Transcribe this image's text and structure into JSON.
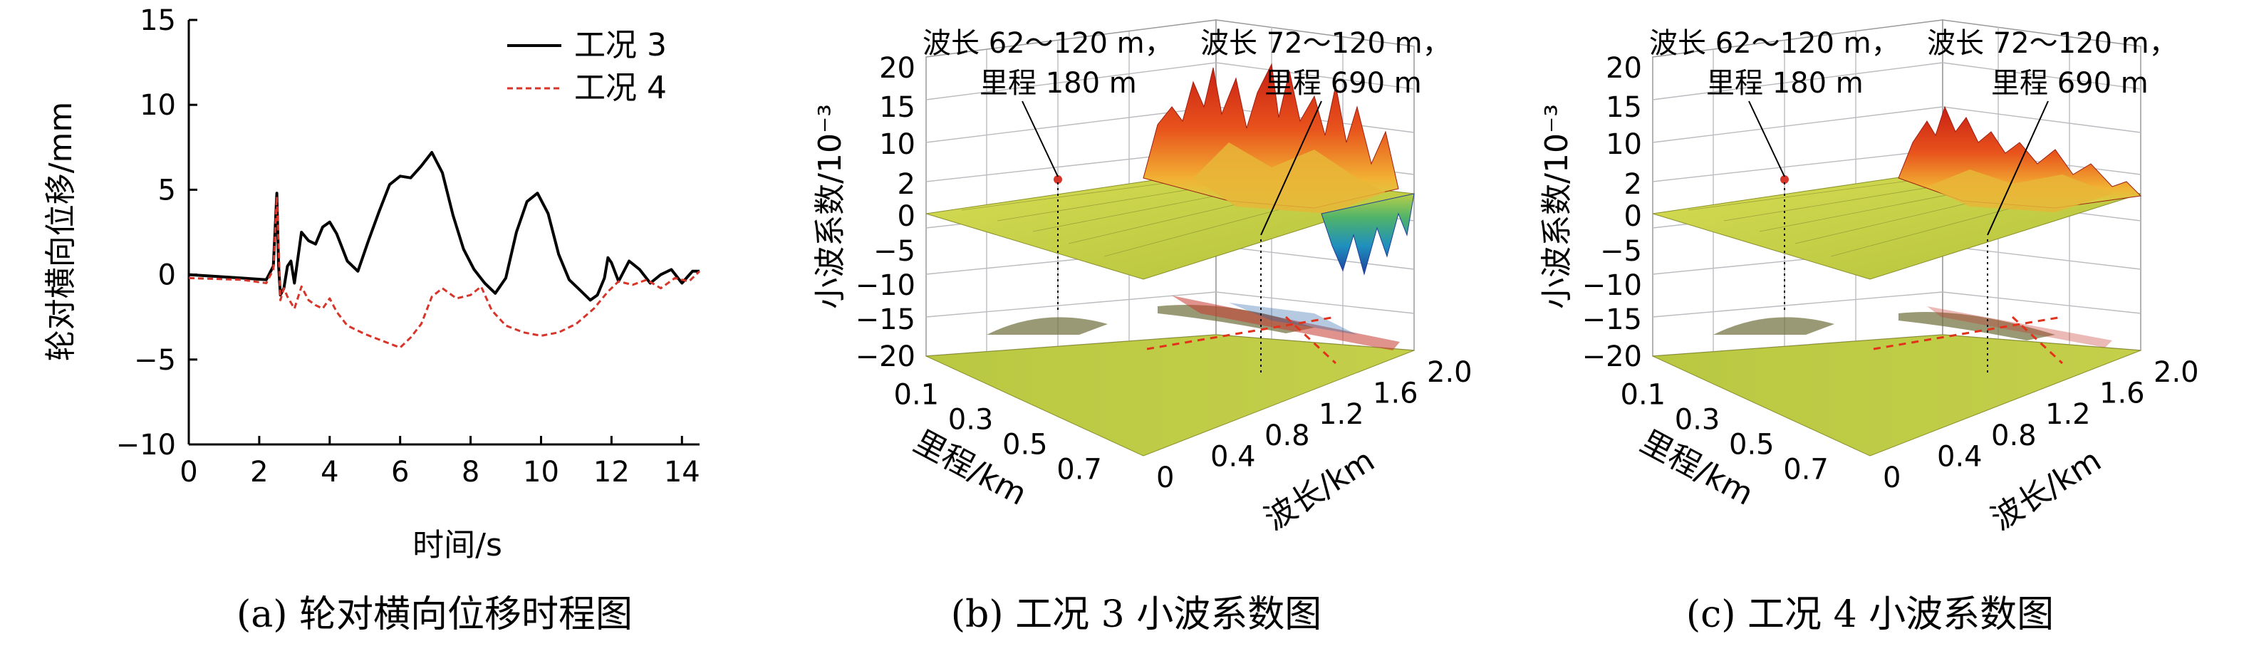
{
  "captions": [
    "(a) 轮对横向位移时程图",
    "(b) 工况 3 小波系数图",
    "(c) 工况 4 小波系数图"
  ],
  "chart_data": [
    {
      "type": "line",
      "xlabel": "时间/s",
      "ylabel": "轮对横向位移/mm",
      "xlim": [
        0,
        14.5
      ],
      "ylim": [
        -10,
        15
      ],
      "xticks": [
        0,
        2,
        4,
        6,
        8,
        10,
        12,
        14
      ],
      "yticks": [
        -10,
        -5,
        0,
        5,
        10,
        15
      ],
      "grid": false,
      "legend_position": "top-right",
      "series": [
        {
          "name": "工况 3",
          "color": "#000000",
          "style": "solid",
          "x": [
            0,
            1.5,
            2.2,
            2.4,
            2.5,
            2.55,
            2.6,
            2.7,
            2.8,
            2.9,
            3.0,
            3.2,
            3.4,
            3.6,
            3.8,
            4.0,
            4.2,
            4.5,
            4.8,
            5.1,
            5.4,
            5.7,
            6.0,
            6.3,
            6.6,
            6.9,
            7.2,
            7.5,
            7.8,
            8.1,
            8.4,
            8.7,
            9.0,
            9.3,
            9.6,
            9.9,
            10.2,
            10.5,
            10.8,
            11.1,
            11.4,
            11.6,
            11.8,
            11.9,
            12.0,
            12.2,
            12.5,
            12.8,
            13.1,
            13.4,
            13.7,
            14.0,
            14.3,
            14.5
          ],
          "y": [
            0,
            -0.2,
            -0.3,
            0.5,
            4.8,
            0.5,
            -1.2,
            -0.8,
            0.5,
            0.8,
            -0.5,
            2.5,
            2.0,
            1.8,
            2.8,
            3.1,
            2.4,
            0.8,
            0.2,
            2.0,
            3.7,
            5.3,
            5.8,
            5.7,
            6.4,
            7.2,
            6.0,
            3.5,
            1.5,
            0.3,
            -0.5,
            -1.1,
            -0.2,
            2.5,
            4.3,
            4.8,
            3.6,
            1.2,
            -0.3,
            -0.9,
            -1.5,
            -1.2,
            -0.2,
            1.0,
            0.7,
            -0.4,
            0.8,
            0.3,
            -0.5,
            0.0,
            0.3,
            -0.5,
            0.2,
            0.2
          ]
        },
        {
          "name": "工况 4",
          "color": "#d8352a",
          "style": "dashed",
          "x": [
            0,
            1.5,
            2.2,
            2.4,
            2.5,
            2.6,
            2.7,
            2.8,
            3.0,
            3.2,
            3.4,
            3.6,
            3.8,
            4.0,
            4.2,
            4.5,
            5.0,
            5.5,
            6.0,
            6.3,
            6.6,
            6.9,
            7.2,
            7.6,
            8.0,
            8.3,
            8.6,
            9.0,
            9.5,
            10.0,
            10.5,
            11.0,
            11.5,
            11.9,
            12.2,
            12.6,
            13.0,
            13.4,
            13.8,
            14.2,
            14.5
          ],
          "y": [
            -0.2,
            -0.3,
            -0.5,
            0.3,
            4.6,
            -1.5,
            -0.8,
            -1.3,
            -2.0,
            -0.7,
            -1.5,
            -1.8,
            -2.0,
            -1.4,
            -2.2,
            -3.0,
            -3.5,
            -3.9,
            -4.3,
            -3.7,
            -2.9,
            -1.3,
            -0.8,
            -1.4,
            -1.2,
            -0.7,
            -2.1,
            -3.0,
            -3.4,
            -3.6,
            -3.4,
            -2.9,
            -2.0,
            -1.0,
            -0.4,
            -0.6,
            -0.3,
            -0.8,
            -0.2,
            -0.4,
            0.2
          ]
        }
      ]
    },
    {
      "type": "3d-surface",
      "zlabel": "小波系数/10⁻³",
      "x_label": "里程/km",
      "y_label": "波长/km",
      "zticks": [
        -20,
        -15,
        -10,
        -5,
        0,
        2,
        10,
        15,
        20
      ],
      "x_ticks": [
        0.1,
        0.3,
        0.5,
        0.7
      ],
      "y_ticks": [
        0,
        0.4,
        0.8,
        1.2,
        1.6,
        2.0
      ],
      "annotations": [
        {
          "lines": [
            "波长 62～120 m，",
            "里程 180 m"
          ]
        },
        {
          "lines": [
            "波长 72～120 m，",
            "里程 690 m"
          ]
        }
      ]
    },
    {
      "type": "3d-surface",
      "zlabel": "小波系数/10⁻³",
      "x_label": "里程/km",
      "y_label": "波长/km",
      "zticks": [
        -20,
        -15,
        -10,
        -5,
        0,
        2,
        10,
        15,
        20
      ],
      "x_ticks": [
        0.1,
        0.3,
        0.5,
        0.7
      ],
      "y_ticks": [
        0,
        0.4,
        0.8,
        1.2,
        1.6,
        2.0
      ],
      "annotations": [
        {
          "lines": [
            "波长 62～120 m，",
            "里程 180 m"
          ]
        },
        {
          "lines": [
            "波长 72～120 m，",
            "里程 690 m"
          ]
        }
      ]
    }
  ]
}
